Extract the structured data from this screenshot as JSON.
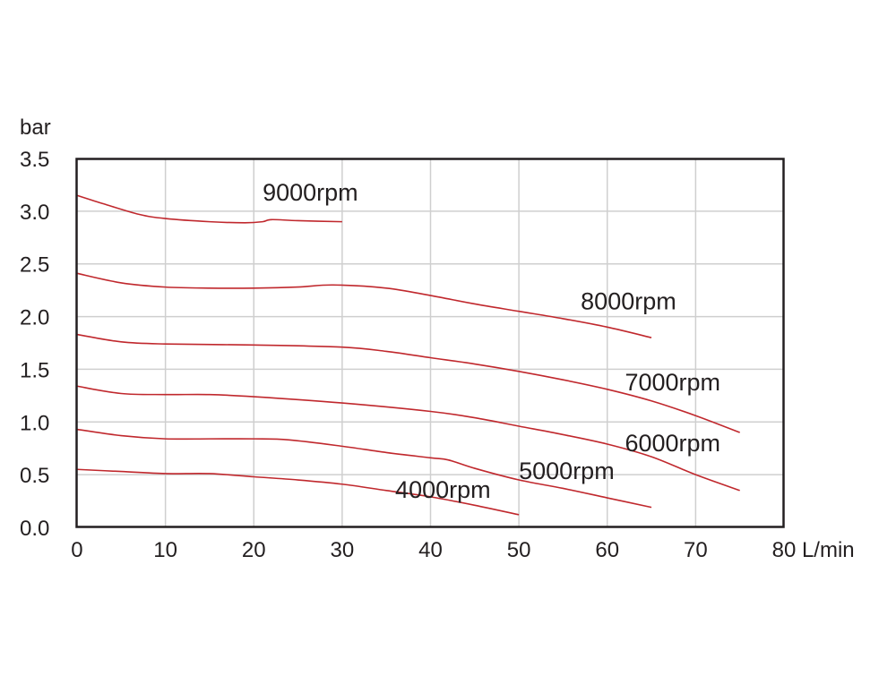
{
  "chart_data": {
    "type": "line",
    "title": "",
    "xlabel": "L/min",
    "ylabel": "bar",
    "xlim": [
      0,
      80
    ],
    "ylim": [
      0,
      3.5
    ],
    "grid": true,
    "x_ticks": [
      "0",
      "10",
      "20",
      "30",
      "40",
      "50",
      "60",
      "70",
      "80"
    ],
    "y_ticks": [
      "0.0",
      "0.5",
      "1.0",
      "1.5",
      "2.0",
      "2.5",
      "3.0",
      "3.5"
    ],
    "line_color": "#c0282d",
    "series": [
      {
        "name": "9000rpm",
        "label": "9000rpm",
        "label_pos": [
          21,
          3.1
        ],
        "points": [
          [
            0,
            3.15
          ],
          [
            3,
            3.07
          ],
          [
            7,
            2.97
          ],
          [
            10,
            2.93
          ],
          [
            15,
            2.9
          ],
          [
            19,
            2.89
          ],
          [
            21,
            2.9
          ],
          [
            22,
            2.92
          ],
          [
            25,
            2.91
          ],
          [
            30,
            2.9
          ]
        ]
      },
      {
        "name": "8000rpm",
        "label": "8000rpm",
        "label_pos": [
          57,
          2.07
        ],
        "points": [
          [
            0,
            2.41
          ],
          [
            5,
            2.32
          ],
          [
            10,
            2.28
          ],
          [
            15,
            2.27
          ],
          [
            20,
            2.27
          ],
          [
            25,
            2.28
          ],
          [
            29,
            2.3
          ],
          [
            35,
            2.27
          ],
          [
            40,
            2.2
          ],
          [
            45,
            2.12
          ],
          [
            50,
            2.05
          ],
          [
            55,
            1.98
          ],
          [
            60,
            1.9
          ],
          [
            65,
            1.8
          ]
        ]
      },
      {
        "name": "7000rpm",
        "label": "7000rpm",
        "label_pos": [
          62,
          1.3
        ],
        "points": [
          [
            0,
            1.83
          ],
          [
            5,
            1.76
          ],
          [
            10,
            1.74
          ],
          [
            20,
            1.73
          ],
          [
            30,
            1.71
          ],
          [
            35,
            1.67
          ],
          [
            40,
            1.61
          ],
          [
            45,
            1.55
          ],
          [
            50,
            1.48
          ],
          [
            55,
            1.4
          ],
          [
            60,
            1.31
          ],
          [
            65,
            1.2
          ],
          [
            70,
            1.06
          ],
          [
            75,
            0.9
          ]
        ]
      },
      {
        "name": "6000rpm",
        "label": "6000rpm",
        "label_pos": [
          62,
          0.72
        ],
        "points": [
          [
            0,
            1.34
          ],
          [
            5,
            1.27
          ],
          [
            10,
            1.26
          ],
          [
            15,
            1.26
          ],
          [
            20,
            1.24
          ],
          [
            30,
            1.18
          ],
          [
            40,
            1.1
          ],
          [
            45,
            1.04
          ],
          [
            50,
            0.96
          ],
          [
            55,
            0.88
          ],
          [
            60,
            0.79
          ],
          [
            65,
            0.67
          ],
          [
            70,
            0.5
          ],
          [
            75,
            0.35
          ]
        ]
      },
      {
        "name": "5000rpm",
        "label": "5000rpm",
        "label_pos": [
          50,
          0.46
        ],
        "points": [
          [
            0,
            0.93
          ],
          [
            5,
            0.87
          ],
          [
            10,
            0.84
          ],
          [
            15,
            0.84
          ],
          [
            20,
            0.84
          ],
          [
            24,
            0.83
          ],
          [
            30,
            0.77
          ],
          [
            35,
            0.71
          ],
          [
            40,
            0.66
          ],
          [
            42,
            0.64
          ],
          [
            45,
            0.56
          ],
          [
            50,
            0.45
          ],
          [
            55,
            0.37
          ],
          [
            60,
            0.28
          ],
          [
            65,
            0.19
          ]
        ]
      },
      {
        "name": "4000rpm",
        "label": "4000rpm",
        "label_pos": [
          36,
          0.28
        ],
        "points": [
          [
            0,
            0.55
          ],
          [
            5,
            0.53
          ],
          [
            10,
            0.51
          ],
          [
            15,
            0.51
          ],
          [
            20,
            0.48
          ],
          [
            25,
            0.45
          ],
          [
            30,
            0.41
          ],
          [
            35,
            0.35
          ],
          [
            40,
            0.29
          ],
          [
            45,
            0.21
          ],
          [
            50,
            0.12
          ]
        ]
      }
    ]
  }
}
